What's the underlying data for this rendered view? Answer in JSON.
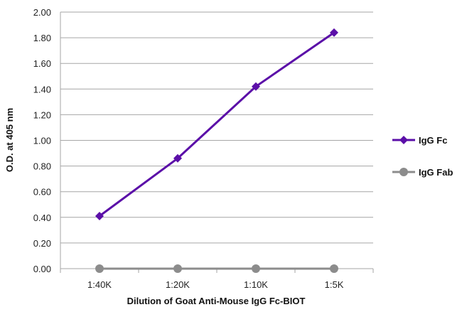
{
  "chart_data": {
    "type": "line",
    "categories": [
      "1:40K",
      "1:20K",
      "1:10K",
      "1:5K"
    ],
    "series": [
      {
        "name": "IgG Fc",
        "values": [
          0.41,
          0.86,
          1.42,
          1.84
        ],
        "color": "#5b0fa8",
        "marker": "diamond"
      },
      {
        "name": "IgG Fab",
        "values": [
          0.0,
          0.0,
          0.0,
          0.0
        ],
        "color": "#8c8c8c",
        "marker": "circle"
      }
    ],
    "yticks": [
      "0.00",
      "0.20",
      "0.40",
      "0.60",
      "0.80",
      "1.00",
      "1.20",
      "1.40",
      "1.60",
      "1.80",
      "2.00"
    ],
    "ylim": [
      0,
      2.0
    ],
    "xlabel": "Dilution of Goat Anti-Mouse IgG Fc-BIOT",
    "ylabel": "O.D. at 405 nm",
    "grid": true,
    "legend_position": "right"
  }
}
